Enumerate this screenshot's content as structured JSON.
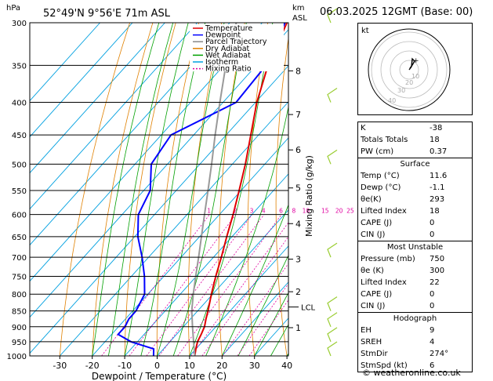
{
  "header": {
    "hpa": "hPa",
    "location": "52°49'N  9°56'E  71m  ASL",
    "km": "km",
    "asl": "ASL",
    "date": "06.03.2025  12GMT  (Base: 00)"
  },
  "chart_data": {
    "type": "line",
    "title": "Skew-T log-P sounding",
    "xlabel": "Dewpoint / Temperature (°C)",
    "ylabel": "hPa",
    "mixing_ratio_label": "Mixing Ratio (g/kg)",
    "xlim": [
      -40,
      40
    ],
    "pressure_ticks": [
      300,
      350,
      400,
      450,
      500,
      550,
      600,
      650,
      700,
      750,
      800,
      850,
      900,
      950,
      1000
    ],
    "x_ticks": [
      -30,
      -20,
      -10,
      0,
      10,
      20,
      30,
      40
    ],
    "km_ticks": [
      {
        "label": "8",
        "p": 357
      },
      {
        "label": "7",
        "p": 418
      },
      {
        "label": "6",
        "p": 475
      },
      {
        "label": "5",
        "p": 545
      },
      {
        "label": "4",
        "p": 620
      },
      {
        "label": "3",
        "p": 705
      },
      {
        "label": "2",
        "p": 793
      },
      {
        "label": "1",
        "p": 903
      }
    ],
    "lcl": {
      "label": "LCL",
      "p": 838
    },
    "mixing_ratio_values": [
      "1",
      "2",
      "3",
      "4",
      "6",
      "8",
      "10",
      "15",
      "20",
      "25"
    ],
    "legend": [
      "Temperature",
      "Dewpoint",
      "Parcel Trajectory",
      "Dry Adiabat",
      "Wet Adiabat",
      "Isotherm",
      "Mixing Ratio"
    ],
    "legend_colors": [
      "#e00000",
      "#0000ff",
      "#888888",
      "#e08000",
      "#00a000",
      "#00a0e0",
      "#e000a0"
    ],
    "series": [
      {
        "name": "Temperature",
        "color": "#e00000",
        "p": [
          1000,
          975,
          950,
          925,
          900,
          875,
          850,
          800,
          750,
          700,
          650,
          600,
          550,
          500,
          450,
          400,
          350,
          300
        ],
        "t": [
          11.6,
          10.0,
          8.5,
          7.6,
          6.5,
          4.8,
          3.2,
          -0.4,
          -4.0,
          -7.6,
          -11.6,
          -15.8,
          -20.6,
          -26.0,
          -32.4,
          -39.6,
          -46.4,
          -52.4
        ]
      },
      {
        "name": "Dewpoint",
        "color": "#0000ff",
        "p": [
          1000,
          975,
          950,
          925,
          900,
          875,
          850,
          800,
          750,
          700,
          650,
          600,
          550,
          500,
          450,
          400,
          350,
          300
        ],
        "t": [
          -1.1,
          -3.0,
          -12.0,
          -18.0,
          -18.0,
          -19.0,
          -19.0,
          -21.0,
          -26.0,
          -32.0,
          -39.0,
          -45.0,
          -48.0,
          -55.0,
          -57.0,
          -46.0,
          -47.0,
          -53.0
        ]
      },
      {
        "name": "Parcel Trajectory",
        "color": "#999999",
        "p": [
          1000,
          950,
          900,
          850,
          838,
          800,
          750,
          700,
          650,
          600,
          550,
          500,
          450,
          400,
          350,
          300
        ],
        "t": [
          11.6,
          7.3,
          2.8,
          -1.8,
          -2.8,
          -6.0,
          -10.2,
          -14.6,
          -19.4,
          -24.6,
          -30.2,
          -36.4,
          -43.4,
          -51.0,
          -59.4,
          -68.0
        ]
      }
    ]
  },
  "indices": {
    "rows1": [
      {
        "label": "K",
        "value": "-38"
      },
      {
        "label": "Totals Totals",
        "value": "18"
      },
      {
        "label": "PW (cm)",
        "value": "0.37"
      }
    ],
    "surface_title": "Surface",
    "surface": [
      {
        "label": "Temp (°C)",
        "value": "11.6"
      },
      {
        "label": "Dewp (°C)",
        "value": "-1.1"
      },
      {
        "label": "θe(K)",
        "value": "293"
      },
      {
        "label": "Lifted Index",
        "value": "18"
      },
      {
        "label": "CAPE (J)",
        "value": "0"
      },
      {
        "label": "CIN (J)",
        "value": "0"
      }
    ],
    "mu_title": "Most Unstable",
    "mu": [
      {
        "label": "Pressure (mb)",
        "value": "750"
      },
      {
        "label": "θe (K)",
        "value": "300"
      },
      {
        "label": "Lifted Index",
        "value": "22"
      },
      {
        "label": "CAPE (J)",
        "value": "0"
      },
      {
        "label": "CIN (J)",
        "value": "0"
      }
    ],
    "hodo_title": "Hodograph",
    "hodo": [
      {
        "label": "EH",
        "value": "9"
      },
      {
        "label": "SREH",
        "value": "4"
      },
      {
        "label": "StmDir",
        "value": "274°"
      },
      {
        "label": "StmSpd (kt)",
        "value": "6"
      }
    ]
  },
  "hodograph": {
    "label": "kt",
    "ring_labels": [
      "10",
      "20",
      "30",
      "40"
    ]
  },
  "footer": "© weatheronline.co.uk"
}
